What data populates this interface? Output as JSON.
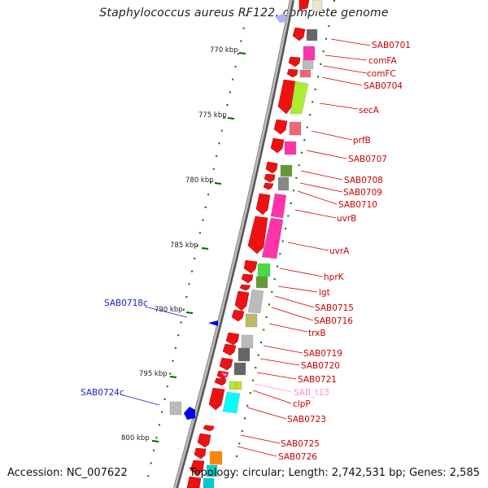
{
  "title": "Staphylococcus aureus RF122, complete genome",
  "accession": "Accession: NC_007622",
  "topology": "Topology: circular; Length: 2,742,531 bp; Genes: 2,585",
  "scale": {
    "ticks": [
      {
        "kbp": 770,
        "label": "770 kbp"
      },
      {
        "kbp": 775,
        "label": "775 kbp"
      },
      {
        "kbp": 780,
        "label": "780 kbp"
      },
      {
        "kbp": 785,
        "label": "785 kbp"
      },
      {
        "kbp": 790,
        "label": "790 kbp"
      },
      {
        "kbp": 795,
        "label": "795 kbp"
      },
      {
        "kbp": 800,
        "label": "800 kbp"
      }
    ]
  },
  "colors": {
    "cds": "#ee1111",
    "backbone": "#888888",
    "tick": "#006600",
    "label_red": "#cc0000",
    "label_blue": "#1a1acc",
    "label_pink": "#ff8fd0"
  },
  "genes": [
    {
      "name": "SAB0701",
      "color": "label-red"
    },
    {
      "name": "comFA",
      "color": "label-red"
    },
    {
      "name": "comFC",
      "color": "label-red"
    },
    {
      "name": "SAB0704",
      "color": "label-red"
    },
    {
      "name": "secA",
      "color": "label-red"
    },
    {
      "name": "prfB",
      "color": "label-red"
    },
    {
      "name": "SAB0707",
      "color": "label-red"
    },
    {
      "name": "SAB0708",
      "color": "label-red"
    },
    {
      "name": "SAB0709",
      "color": "label-red"
    },
    {
      "name": "SAB0710",
      "color": "label-red"
    },
    {
      "name": "uvrB",
      "color": "label-red"
    },
    {
      "name": "uvrA",
      "color": "label-red"
    },
    {
      "name": "hprK",
      "color": "label-red"
    },
    {
      "name": "lgt",
      "color": "label-red"
    },
    {
      "name": "SAB0715",
      "color": "label-red"
    },
    {
      "name": "SAB0716",
      "color": "label-red"
    },
    {
      "name": "trxB",
      "color": "label-red"
    },
    {
      "name": "SAB0719",
      "color": "label-red"
    },
    {
      "name": "SAB0720",
      "color": "label-red"
    },
    {
      "name": "SAB0721",
      "color": "label-red"
    },
    {
      "name": "SAB_t13",
      "color": "label-pink"
    },
    {
      "name": "clpP",
      "color": "label-red"
    },
    {
      "name": "SAB0723",
      "color": "label-red"
    },
    {
      "name": "SAB0725",
      "color": "label-red"
    },
    {
      "name": "SAB0726",
      "color": "label-red"
    },
    {
      "name": "SAB0718c",
      "color": "label-blue"
    },
    {
      "name": "SAB0724c",
      "color": "label-blue"
    }
  ]
}
